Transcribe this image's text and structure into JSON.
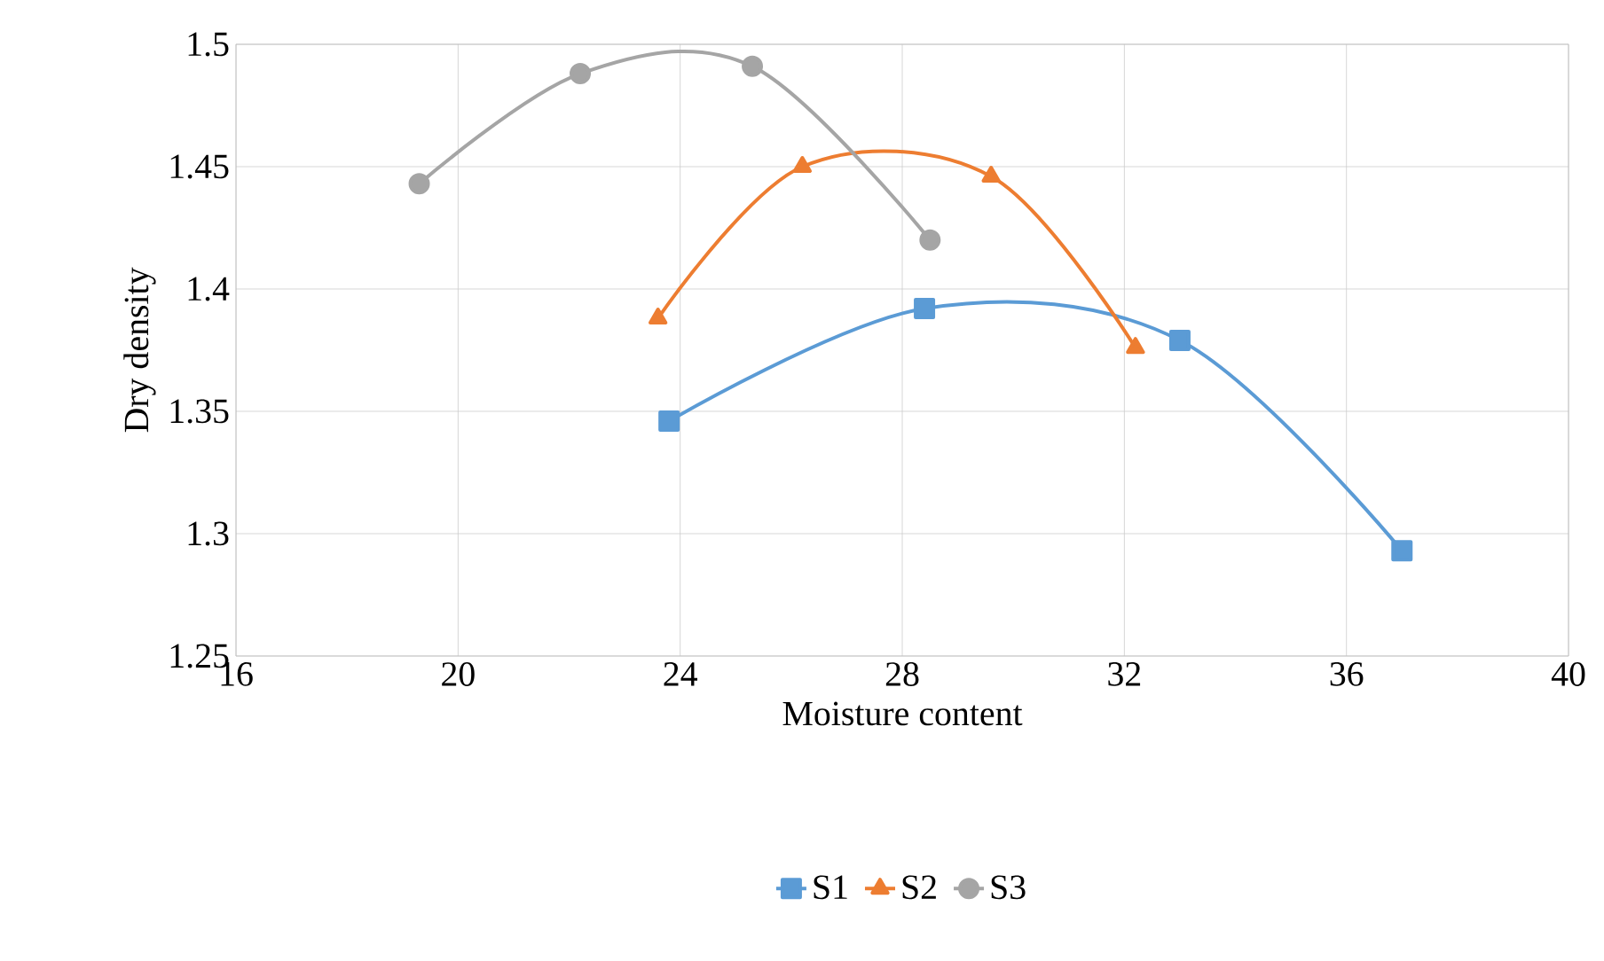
{
  "chart_data": {
    "type": "line",
    "xlabel": "Moisture content",
    "ylabel": "Dry density",
    "xlim": [
      16,
      40
    ],
    "xticks": [
      16,
      20,
      24,
      28,
      32,
      36,
      40
    ],
    "ylim": [
      1.25,
      1.5
    ],
    "yticks": [
      1.25,
      1.3,
      1.35,
      1.4,
      1.45,
      1.5
    ],
    "grid": true,
    "legend": "bottom",
    "series": [
      {
        "name": "S1",
        "color": "#5b9bd5",
        "marker": "square",
        "x": [
          23.8,
          28.4,
          33.0,
          37.0
        ],
        "values": [
          1.346,
          1.392,
          1.379,
          1.293
        ]
      },
      {
        "name": "S2",
        "color": "#ed7d31",
        "marker": "triangle",
        "x": [
          23.6,
          26.2,
          29.6,
          32.2
        ],
        "values": [
          1.388,
          1.45,
          1.446,
          1.376
        ]
      },
      {
        "name": "S3",
        "color": "#a5a5a5",
        "marker": "circle",
        "x": [
          19.3,
          22.2,
          25.3,
          28.5
        ],
        "values": [
          1.443,
          1.488,
          1.491,
          1.42
        ]
      }
    ]
  }
}
